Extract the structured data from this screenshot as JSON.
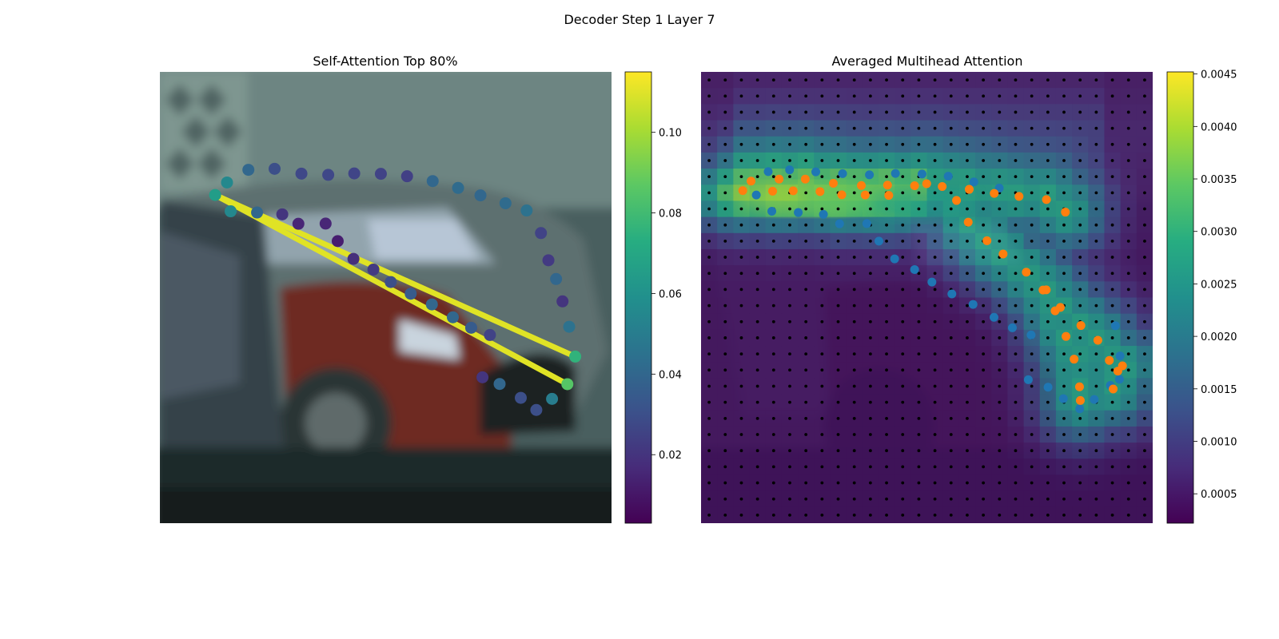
{
  "figure": {
    "suptitle": "Decoder Step 1 Layer 7"
  },
  "chart_data": [
    {
      "type": "scatter",
      "title": "Self-Attention Top 80%",
      "background_image": "blurred photo of parked cars (grey hatchback, red car) in front of a wall",
      "image_extent": {
        "x": [
          0,
          224
        ],
        "y": [
          224,
          0
        ]
      },
      "axes_visible": false,
      "colormap": "viridis",
      "colorbar": {
        "range": [
          0.003,
          0.115
        ],
        "ticks": [
          0.02,
          0.04,
          0.06,
          0.08,
          0.1
        ],
        "tick_labels": [
          "0.02",
          "0.04",
          "0.06",
          "0.08",
          "0.10"
        ]
      },
      "series": [
        {
          "values": [
            [
              27.4,
              61.1,
              0.065
            ],
            [
              33.3,
              54.9,
              0.055
            ],
            [
              43.9,
              48.6,
              0.04
            ],
            [
              56.9,
              48.1,
              0.03
            ],
            [
              70.2,
              50.5,
              0.027
            ],
            [
              83.5,
              51.1,
              0.027
            ],
            [
              96.4,
              50.4,
              0.026
            ],
            [
              109.6,
              50.6,
              0.025
            ],
            [
              122.6,
              51.8,
              0.024
            ],
            [
              135.3,
              54.2,
              0.04
            ],
            [
              147.9,
              57.6,
              0.042
            ],
            [
              159.0,
              61.3,
              0.04
            ],
            [
              171.4,
              65.2,
              0.042
            ],
            [
              181.9,
              68.8,
              0.045
            ],
            [
              189.0,
              80.0,
              0.025
            ],
            [
              192.7,
              93.5,
              0.022
            ],
            [
              196.5,
              102.8,
              0.04
            ],
            [
              199.7,
              113.9,
              0.02
            ],
            [
              203.0,
              126.5,
              0.045
            ],
            [
              206.0,
              141.3,
              0.075
            ],
            [
              202.1,
              155.0,
              0.085
            ],
            [
              194.5,
              162.3,
              0.05
            ],
            [
              186.7,
              167.8,
              0.03
            ],
            [
              179.0,
              161.8,
              0.03
            ],
            [
              168.5,
              154.9,
              0.04
            ],
            [
              160.0,
              151.6,
              0.02
            ],
            [
              35.1,
              69.2,
              0.055
            ],
            [
              48.2,
              69.8,
              0.04
            ],
            [
              60.7,
              70.7,
              0.02
            ],
            [
              68.7,
              75.4,
              0.015
            ],
            [
              82.2,
              75.3,
              0.015
            ],
            [
              88.2,
              84.0,
              0.012
            ],
            [
              96.0,
              92.8,
              0.018
            ],
            [
              105.9,
              98.1,
              0.022
            ],
            [
              114.5,
              104.3,
              0.03
            ],
            [
              124.4,
              110.1,
              0.035
            ],
            [
              134.9,
              115.4,
              0.04
            ],
            [
              145.3,
              121.8,
              0.04
            ],
            [
              154.4,
              127.0,
              0.035
            ],
            [
              163.7,
              130.6,
              0.025
            ]
          ]
        }
      ],
      "links": [
        {
          "from": [
            27.4,
            61.1
          ],
          "to": [
            206.0,
            141.3
          ],
          "value": 0.11
        },
        {
          "from": [
            27.4,
            61.1
          ],
          "to": [
            202.1,
            155.0
          ],
          "value": 0.11
        }
      ]
    },
    {
      "type": "heatmap",
      "title": "Averaged Multihead Attention",
      "background_image": "same blurred photo of parked cars, dimmed under attention overlay",
      "image_extent": {
        "x": [
          0,
          224
        ],
        "y": [
          224,
          0
        ]
      },
      "axes_visible": false,
      "colormap": "viridis",
      "colorbar": {
        "range": [
          0.00022,
          0.00452
        ],
        "ticks": [
          0.0005,
          0.001,
          0.0015,
          0.002,
          0.0025,
          0.003,
          0.0035,
          0.004,
          0.0045
        ],
        "tick_labels": [
          "0.0005",
          "0.0010",
          "0.0015",
          "0.0020",
          "0.0025",
          "0.0030",
          "0.0035",
          "0.0040",
          "0.0045"
        ]
      },
      "grid": {
        "rows": 28,
        "cols": 28,
        "marker": "black dots at grid points"
      },
      "series": [
        {
          "color": "#1f77b4",
          "values": [
            [
              27.4,
              61.1
            ],
            [
              33.3,
              49.5
            ],
            [
              43.9,
              48.6
            ],
            [
              56.9,
              49.6
            ],
            [
              70.2,
              50.5
            ],
            [
              83.5,
              51.1
            ],
            [
              96.4,
              50.4
            ],
            [
              109.6,
              50.7
            ],
            [
              122.6,
              51.8
            ],
            [
              135.3,
              54.6
            ],
            [
              147.9,
              57.7
            ],
            [
              35.1,
              69.2
            ],
            [
              48.2,
              69.8
            ],
            [
              60.7,
              70.7
            ],
            [
              68.7,
              75.4
            ],
            [
              82.2,
              75.3
            ],
            [
              88.2,
              84.0
            ],
            [
              96.0,
              92.8
            ],
            [
              105.9,
              98.1
            ],
            [
              114.5,
              104.3
            ],
            [
              124.4,
              110.2
            ],
            [
              134.9,
              115.4
            ],
            [
              145.3,
              121.8
            ],
            [
              154.4,
              127.0
            ],
            [
              163.7,
              130.6
            ],
            [
              162.3,
              152.8
            ],
            [
              172.1,
              156.5
            ],
            [
              179.7,
              162.2
            ],
            [
              187.8,
              167.2
            ],
            [
              195.0,
              162.6
            ],
            [
              203.0,
              155.6
            ],
            [
              207.8,
              141.0
            ],
            [
              205.5,
              126.0
            ],
            [
              207.5,
              152.6
            ]
          ]
        },
        {
          "color": "#ff7f0e",
          "values": [
            [
              20.7,
              58.9
            ],
            [
              24.8,
              54.2
            ],
            [
              35.5,
              59.2
            ],
            [
              38.7,
              53.2
            ],
            [
              45.7,
              59.0
            ],
            [
              51.7,
              53.2
            ],
            [
              59.0,
              59.4
            ],
            [
              69.8,
              61.0
            ],
            [
              65.6,
              55.3
            ],
            [
              79.5,
              56.4
            ],
            [
              81.4,
              61.1
            ],
            [
              92.5,
              56.2
            ],
            [
              93.1,
              61.3
            ],
            [
              105.9,
              56.5
            ],
            [
              111.9,
              55.5
            ],
            [
              119.6,
              56.9
            ],
            [
              126.7,
              63.8
            ],
            [
              133.0,
              58.3
            ],
            [
              145.4,
              60.3
            ],
            [
              157.7,
              61.8
            ],
            [
              171.3,
              63.4
            ],
            [
              180.7,
              69.6
            ],
            [
              132.5,
              74.6
            ],
            [
              141.8,
              83.8
            ],
            [
              149.8,
              90.4
            ],
            [
              161.3,
              99.4
            ],
            [
              169.6,
              108.3
            ],
            [
              178.2,
              116.9
            ],
            [
              188.4,
              125.9
            ],
            [
              196.8,
              133.2
            ],
            [
              202.5,
              143.2
            ],
            [
              206.7,
              148.5
            ],
            [
              204.4,
              157.4
            ],
            [
              188.1,
              163.1
            ],
            [
              187.7,
              156.3
            ],
            [
              185.0,
              142.6
            ],
            [
              181.0,
              131.3
            ],
            [
              175.6,
              118.6
            ],
            [
              171.2,
              108.2
            ],
            [
              209.0,
              145.9
            ]
          ]
        }
      ]
    }
  ]
}
